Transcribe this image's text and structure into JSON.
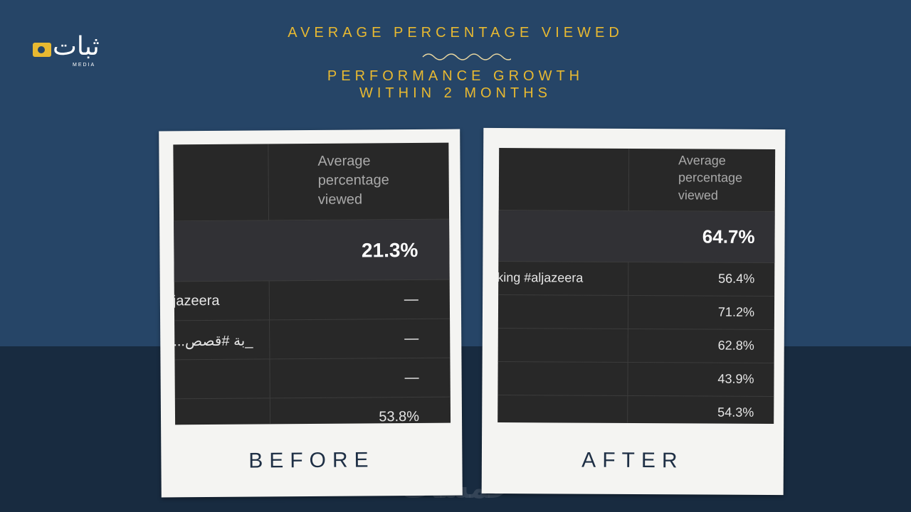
{
  "header": {
    "title": "AVERAGE PERCENTAGE VIEWED",
    "subtitle_lines": [
      "PERFORMANCE GROWTH",
      "WITHIN 2 MONTHS"
    ]
  },
  "logo": {
    "name": "ثبات",
    "tagline": "MEDIA"
  },
  "panels": [
    {
      "caption": "BEFORE",
      "column_header": "Average percentage viewed",
      "total": "21.3%",
      "rows": [
        {
          "label": "jazeera",
          "value": "—"
        },
        {
          "label": "...بة #قصص_",
          "value": "—"
        },
        {
          "value": "—"
        },
        {
          "value": "53.8%"
        }
      ]
    },
    {
      "caption": "AFTER",
      "column_header": "Average percentage viewed",
      "total": "64.7%",
      "rows": [
        {
          "label": "king #aljazeera",
          "value": "56.4%"
        },
        {
          "value": "71.2%"
        },
        {
          "value": "62.8%"
        },
        {
          "value": "43.9%"
        },
        {
          "value": "54.3%"
        }
      ]
    }
  ],
  "watermark": "خمسات"
}
